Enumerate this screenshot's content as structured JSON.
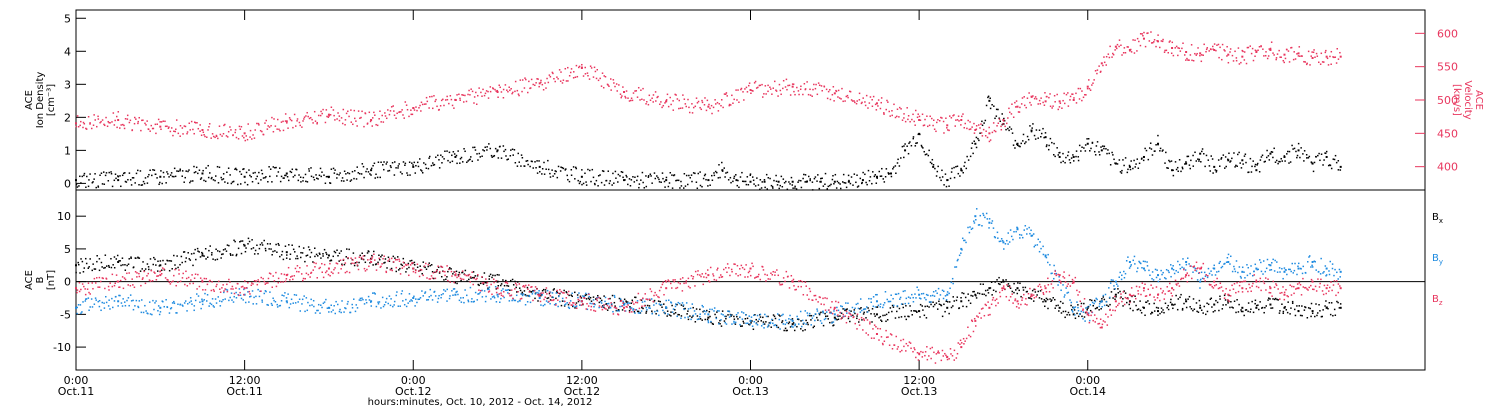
{
  "chart_data": [
    {
      "type": "scatter",
      "panel": "top",
      "left_axis": {
        "label_lines": [
          "ACE",
          "Ion Density",
          "[cm⁻³]"
        ],
        "ylim": [
          -0.2,
          5.25
        ],
        "ticks": [
          "0",
          "1",
          "2",
          "3",
          "4",
          "5"
        ]
      },
      "right_axis": {
        "label_lines": [
          "ACE",
          "Velocity",
          "[km/s]"
        ],
        "ylim": [
          365,
          635
        ],
        "ticks": [
          "400",
          "450",
          "500",
          "550",
          "600"
        ],
        "color": "#e8365e"
      },
      "series": [
        {
          "axis": "left",
          "color": "#000000",
          "x": [
            0,
            3,
            6,
            9,
            12,
            15,
            18,
            21,
            24,
            27,
            30,
            33,
            36,
            39,
            42,
            45,
            46,
            47,
            48,
            49,
            50,
            51,
            52,
            53,
            54,
            55,
            56,
            57,
            58,
            59,
            60,
            61,
            62,
            63,
            64,
            65,
            66,
            67,
            68,
            69,
            70,
            71,
            72,
            73,
            74,
            75,
            76,
            77,
            78,
            79,
            80,
            81,
            82,
            83,
            84,
            85,
            86,
            87,
            88,
            89,
            90
          ],
          "y": [
            0.1,
            0.1,
            0.2,
            0.3,
            0.2,
            0.3,
            0.2,
            0.4,
            0.5,
            0.8,
            1.0,
            0.5,
            0.2,
            0.1,
            0.1,
            0.1,
            0.4,
            0.1,
            0.05,
            0.05,
            0.05,
            0.05,
            0.05,
            0.05,
            0.05,
            0.05,
            0.1,
            0.2,
            0.3,
            1.0,
            1.5,
            0.5,
            0.1,
            0.4,
            1.2,
            2.5,
            1.8,
            1.2,
            1.6,
            1.4,
            0.8,
            0.8,
            1.2,
            1.0,
            0.6,
            0.5,
            0.8,
            1.2,
            0.4,
            0.6,
            0.9,
            0.5,
            0.7,
            0.7,
            0.4,
            0.9,
            0.8,
            1.0,
            0.6,
            0.8,
            0.5
          ]
        },
        {
          "axis": "right",
          "color": "#e8365e",
          "x": [
            0,
            3,
            6,
            9,
            12,
            15,
            18,
            21,
            24,
            27,
            30,
            33,
            36,
            39,
            42,
            45,
            48,
            51,
            54,
            57,
            60,
            62,
            63,
            64,
            65,
            66,
            67,
            68,
            69,
            70,
            71,
            72,
            73,
            74,
            75,
            76,
            77,
            78,
            79,
            80,
            81,
            82,
            83,
            84,
            85,
            86,
            87,
            88,
            89,
            90
          ],
          "y": [
            465,
            470,
            460,
            455,
            450,
            468,
            478,
            470,
            488,
            500,
            512,
            525,
            548,
            512,
            498,
            490,
            515,
            520,
            510,
            495,
            470,
            462,
            470,
            455,
            450,
            470,
            490,
            505,
            498,
            498,
            500,
            520,
            555,
            580,
            575,
            592,
            588,
            578,
            572,
            570,
            575,
            568,
            565,
            572,
            575,
            568,
            570,
            563,
            565,
            565
          ]
        }
      ]
    },
    {
      "type": "scatter",
      "panel": "bottom",
      "left_axis": {
        "label_lines": [
          "ACE",
          "B",
          "[nT]"
        ],
        "ylim": [
          -13.5,
          14.0
        ],
        "ticks": [
          "-10",
          "-5",
          "0",
          "5",
          "10"
        ]
      },
      "legend_position": "right",
      "series": [
        {
          "name": "Bx",
          "color": "#000000",
          "x": [
            0,
            3,
            6,
            9,
            12,
            15,
            18,
            21,
            24,
            27,
            30,
            33,
            36,
            39,
            42,
            45,
            48,
            51,
            54,
            57,
            60,
            62,
            63,
            64,
            65,
            66,
            67,
            68,
            69,
            70,
            71,
            72,
            73,
            74,
            75,
            76,
            77,
            78,
            79,
            80,
            81,
            82,
            83,
            84,
            85,
            86,
            87,
            88,
            89,
            90
          ],
          "y": [
            2.5,
            3.0,
            2.5,
            4.0,
            5.5,
            4.5,
            4.0,
            3.5,
            2.0,
            1.0,
            0.0,
            -2.0,
            -3.0,
            -3.5,
            -4.0,
            -5.5,
            -6.0,
            -6.5,
            -5.5,
            -5.0,
            -4.5,
            -4.0,
            -3.0,
            -2.0,
            -1.0,
            0.0,
            -1.0,
            -2.0,
            -3.0,
            -4.0,
            -5.0,
            -4.0,
            -3.0,
            -2.0,
            -3.0,
            -4.0,
            -4.5,
            -3.5,
            -3.0,
            -4.0,
            -3.5,
            -3.0,
            -4.0,
            -4.0,
            -3.5,
            -4.0,
            -4.5,
            -4.5,
            -4.0,
            -4.0
          ]
        },
        {
          "name": "By",
          "color": "#1f8be0",
          "x": [
            0,
            3,
            6,
            9,
            12,
            15,
            18,
            21,
            24,
            27,
            30,
            33,
            36,
            39,
            42,
            45,
            48,
            51,
            54,
            57,
            60,
            62,
            63,
            64,
            65,
            66,
            67,
            68,
            69,
            70,
            71,
            72,
            73,
            74,
            75,
            76,
            77,
            78,
            79,
            80,
            81,
            82,
            83,
            84,
            85,
            86,
            87,
            88,
            89,
            90
          ],
          "y": [
            -4.0,
            -3.0,
            -4.0,
            -3.0,
            -2.0,
            -3.0,
            -4.0,
            -3.0,
            -2.5,
            -2.0,
            -2.0,
            -2.5,
            -3.0,
            -3.5,
            -4.0,
            -5.0,
            -6.0,
            -6.0,
            -5.0,
            -3.0,
            -2.0,
            -2.0,
            5.0,
            10.0,
            9.0,
            6.0,
            8.0,
            7.0,
            4.0,
            0.0,
            -4.0,
            -5.0,
            -3.0,
            0.0,
            3.0,
            2.0,
            1.0,
            2.0,
            3.0,
            0.0,
            2.0,
            3.0,
            1.5,
            2.0,
            2.5,
            1.5,
            2.0,
            3.0,
            2.0,
            1.5
          ]
        },
        {
          "name": "Bz",
          "color": "#e8365e",
          "x": [
            0,
            3,
            6,
            9,
            12,
            15,
            18,
            21,
            24,
            27,
            30,
            33,
            36,
            39,
            42,
            45,
            48,
            51,
            54,
            57,
            60,
            62,
            63,
            64,
            65,
            66,
            67,
            68,
            69,
            70,
            71,
            72,
            73,
            74,
            75,
            76,
            77,
            78,
            79,
            80,
            81,
            82,
            83,
            84,
            85,
            86,
            87,
            88,
            89,
            90
          ],
          "y": [
            -1.0,
            0.0,
            1.0,
            0.0,
            -1.0,
            1.0,
            2.0,
            3.0,
            2.0,
            1.0,
            -1.0,
            -2.0,
            -3.0,
            -4.0,
            -1.0,
            1.0,
            2.0,
            0.0,
            -4.0,
            -8.0,
            -11.0,
            -11.5,
            -10.0,
            -6.0,
            -4.0,
            -1.0,
            -3.0,
            -2.0,
            -1.0,
            1.0,
            0.0,
            -5.0,
            -7.0,
            -3.0,
            -2.0,
            -1.0,
            -2.0,
            -1.0,
            1.0,
            2.0,
            0.0,
            -2.0,
            -1.0,
            0.0,
            -1.0,
            -2.0,
            -1.0,
            0.0,
            -1.0,
            -1.0
          ]
        }
      ]
    }
  ],
  "x_axis": {
    "xlim": [
      0,
      96
    ],
    "ticks": [
      {
        "x": 0,
        "line1": "0:00",
        "line2": "Oct.11"
      },
      {
        "x": 12,
        "line1": "12:00",
        "line2": "Oct.11"
      },
      {
        "x": 24,
        "line1": "0:00",
        "line2": "Oct.12"
      },
      {
        "x": 36,
        "line1": "12:00",
        "line2": "Oct.12"
      },
      {
        "x": 48,
        "line1": "0:00",
        "line2": "Oct.13"
      },
      {
        "x": 60,
        "line1": "12:00",
        "line2": "Oct.13"
      },
      {
        "x": 72,
        "line1": "0:00",
        "line2": "Oct.14"
      }
    ],
    "title": "hours:minutes, Oct. 10, 2012 - Oct. 14, 2012"
  },
  "legend": {
    "bx": {
      "main": "B",
      "sub": "x"
    },
    "by": {
      "main": "B",
      "sub": "y"
    },
    "bz": {
      "main": "B",
      "sub": "z"
    }
  }
}
